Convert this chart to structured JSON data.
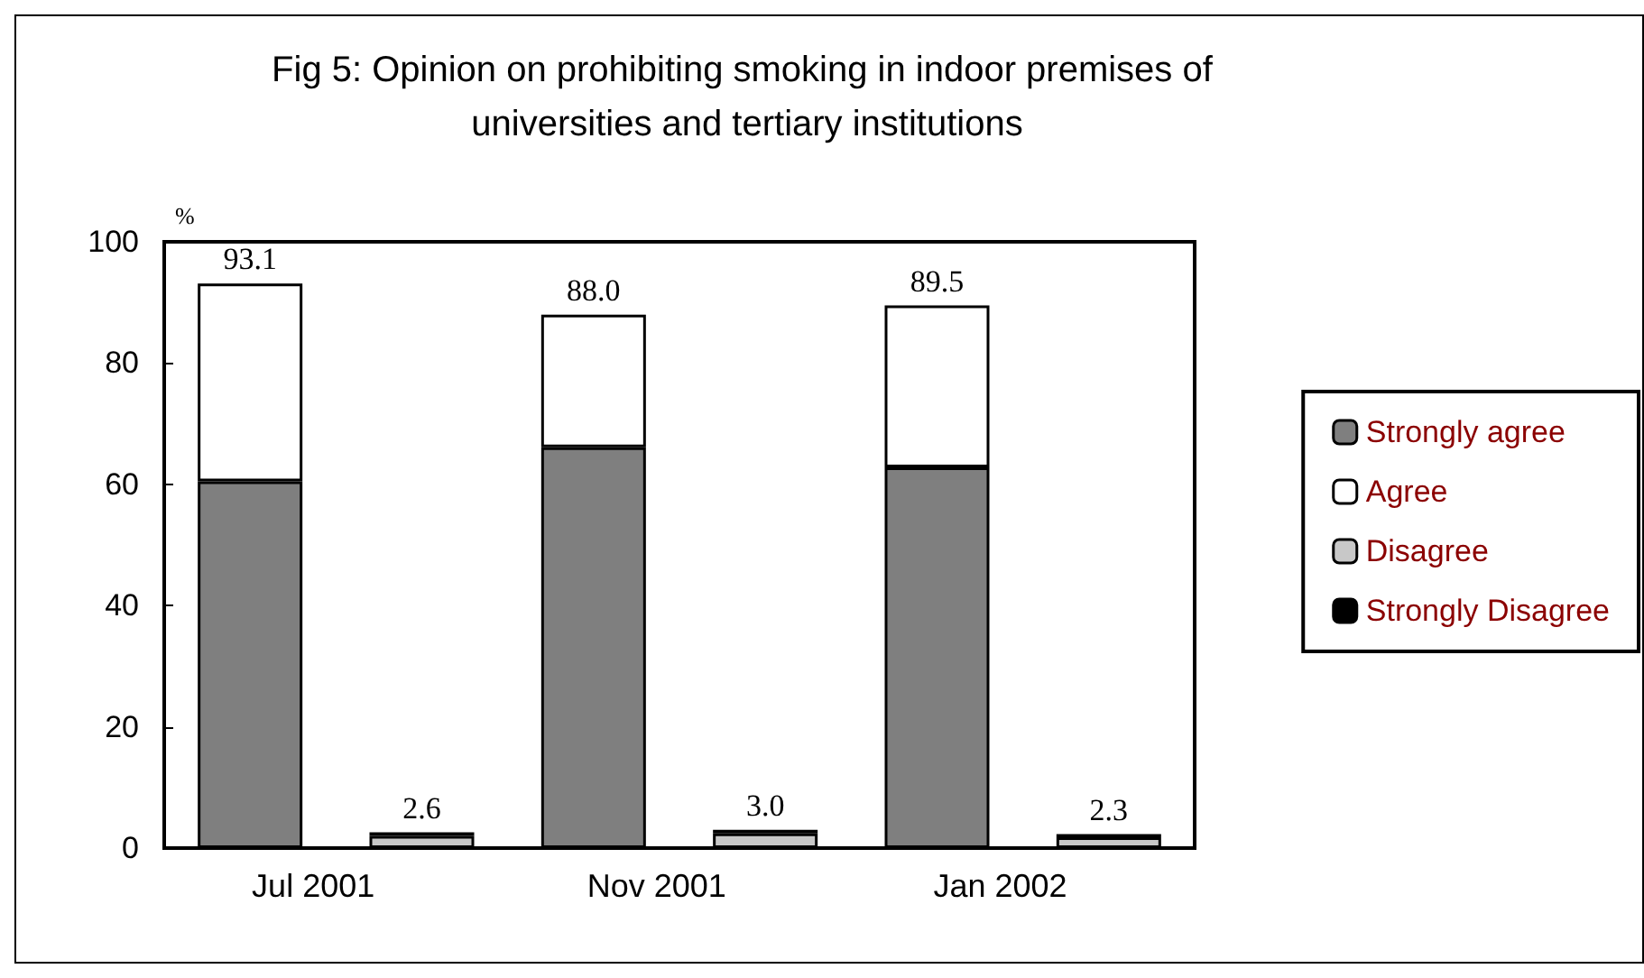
{
  "chart_data": {
    "type": "bar",
    "title": "Fig 5: Opinion on prohibiting smoking in indoor premises of universities and tertiary institutions",
    "ylabel": "%",
    "categories": [
      "Jul 2001",
      null,
      "Nov 2001",
      null,
      "Jan 2002",
      null
    ],
    "stacked": true,
    "series": [
      {
        "name": "Strongly agree",
        "color": "#7f7f7f",
        "values": [
          60.5,
          null,
          66.1,
          null,
          62.8,
          null
        ]
      },
      {
        "name": "Agree",
        "color": "#ffffff",
        "values": [
          32.6,
          null,
          21.9,
          null,
          26.7,
          null
        ]
      },
      {
        "name": "Disagree",
        "color": "#c8c8c8",
        "values": [
          null,
          2.0,
          null,
          2.4,
          null,
          1.8
        ]
      },
      {
        "name": "Strongly Disagree",
        "color": "#000000",
        "values": [
          null,
          0.6,
          null,
          0.6,
          null,
          0.5
        ]
      }
    ],
    "totals": [
      "93.1",
      "2.6",
      "88.0",
      "3.0",
      "89.5",
      "2.3"
    ],
    "ylim": [
      0,
      100
    ],
    "yticks": [
      0,
      20,
      40,
      60,
      80,
      100
    ],
    "legend": "right"
  }
}
